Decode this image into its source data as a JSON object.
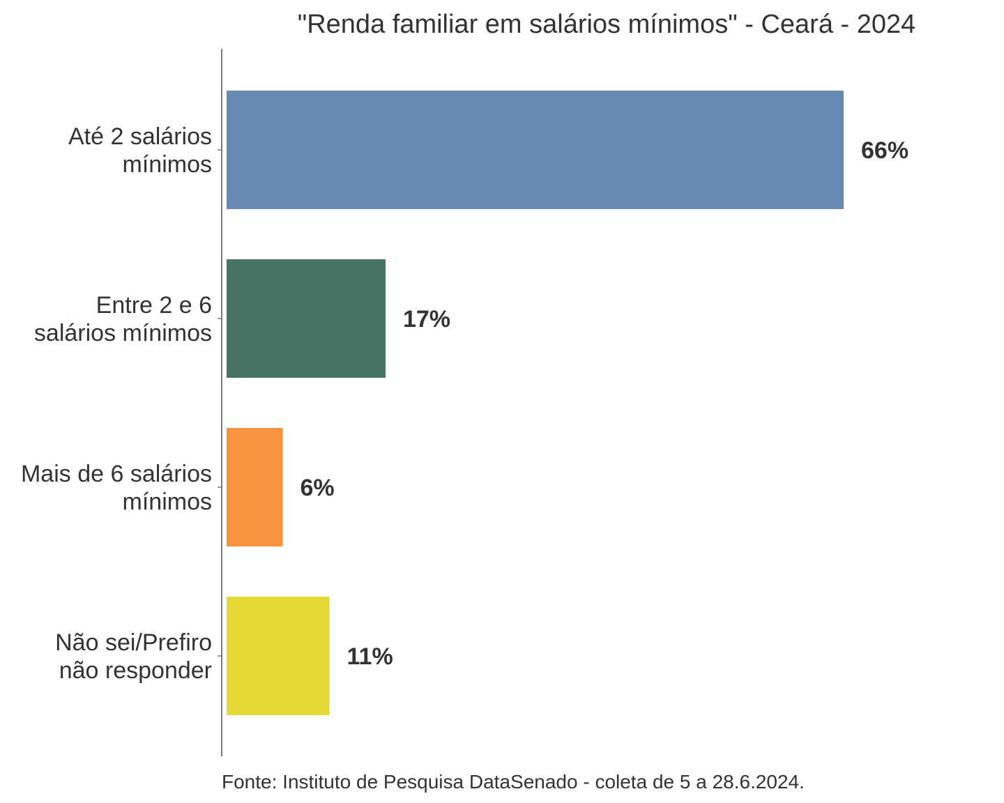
{
  "chart_data": {
    "type": "bar",
    "orientation": "horizontal",
    "title": "\"Renda familiar em salários mínimos\" - Ceará - 2024",
    "categories": [
      [
        "Até 2 salários",
        "mínimos"
      ],
      [
        "Entre 2 e 6",
        "salários mínimos"
      ],
      [
        "Mais de 6 salários",
        "mínimos"
      ],
      [
        "Não sei/Prefiro",
        "não responder"
      ]
    ],
    "values": [
      66,
      17,
      6,
      11
    ],
    "value_labels": [
      "66%",
      "17%",
      "6%",
      "11%"
    ],
    "colors": [
      "#6589b0",
      "#457463",
      "#f9923c",
      "#e5d835"
    ],
    "unit": "%",
    "xlim": [
      0,
      75
    ],
    "grid": false,
    "legend": "none",
    "source": "Fonte: Instituto de Pesquisa DataSenado - coleta de 5 a 28.6.2024."
  }
}
